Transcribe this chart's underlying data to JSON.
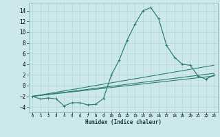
{
  "xlabel": "Humidex (Indice chaleur)",
  "background_color": "#cce8eb",
  "grid_color": "#b8d8dc",
  "line_color": "#2d7d74",
  "xlim": [
    -0.5,
    23.5
  ],
  "ylim": [
    -5.0,
    15.5
  ],
  "yticks": [
    -4,
    -2,
    0,
    2,
    4,
    6,
    8,
    10,
    12,
    14
  ],
  "xticks": [
    0,
    1,
    2,
    3,
    4,
    5,
    6,
    7,
    8,
    9,
    10,
    11,
    12,
    13,
    14,
    15,
    16,
    17,
    18,
    19,
    20,
    21,
    22,
    23
  ],
  "curve1_x": [
    0,
    1,
    2,
    3,
    4,
    5,
    6,
    7,
    8,
    9,
    10,
    11,
    12,
    13,
    14,
    15,
    16,
    17,
    18,
    19,
    20,
    21,
    22,
    23
  ],
  "curve1_y": [
    -2.0,
    -2.5,
    -2.3,
    -2.5,
    -3.8,
    -3.2,
    -3.2,
    -3.6,
    -3.5,
    -2.4,
    2.0,
    4.8,
    8.5,
    11.5,
    14.0,
    14.6,
    12.5,
    7.5,
    5.3,
    4.0,
    3.8,
    1.8,
    1.2,
    2.0
  ],
  "line2_x": [
    0,
    23
  ],
  "line2_y": [
    -2.0,
    3.8
  ],
  "line3_x": [
    0,
    23
  ],
  "line3_y": [
    -2.0,
    2.3
  ],
  "line4_x": [
    0,
    23
  ],
  "line4_y": [
    -2.0,
    1.8
  ]
}
